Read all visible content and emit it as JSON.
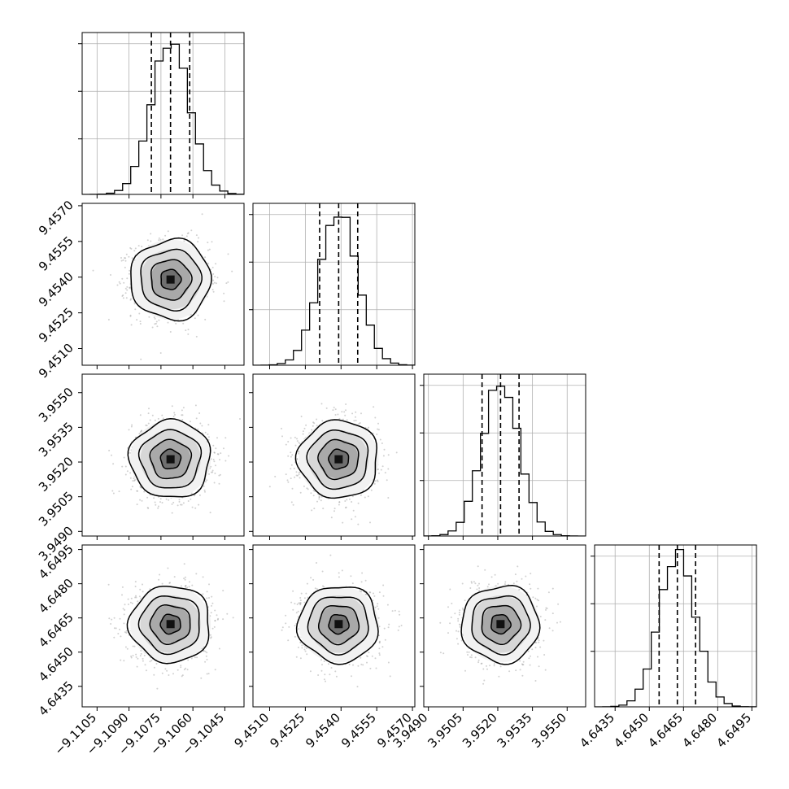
{
  "chart_data": {
    "type": "corner",
    "parameters": [
      {
        "lim": [
          -9.1112,
          -9.1036
        ],
        "median": -9.10705,
        "q16": -9.10795,
        "q84": -9.10615,
        "sigma": 0.0009,
        "hist_peak": 0.95,
        "ticks": [
          -9.1105,
          -9.109,
          -9.1075,
          -9.106,
          -9.1045
        ],
        "tick_labels": [
          "−9.1105",
          "−9.1090",
          "−9.1075",
          "−9.1060",
          "−9.1045"
        ]
      },
      {
        "lim": [
          9.4503,
          9.4571
        ],
        "median": 9.4539,
        "q16": 9.4531,
        "q84": 9.4547,
        "sigma": 0.0008,
        "hist_peak": 0.95,
        "ticks": [
          9.451,
          9.4525,
          9.454,
          9.4555,
          9.457
        ],
        "tick_labels": [
          "9.4510",
          "9.4525",
          "9.4540",
          "9.4555",
          "9.4570"
        ]
      },
      {
        "lim": [
          3.9488,
          3.9558
        ],
        "median": 3.95212,
        "q16": 3.95132,
        "q84": 3.95292,
        "sigma": 0.0008,
        "hist_peak": 0.95,
        "ticks": [
          3.949,
          3.9505,
          3.952,
          3.9535,
          3.955
        ],
        "tick_labels": [
          "3.9490",
          "3.9505",
          "3.9520",
          "3.9535",
          "3.9550"
        ]
      },
      {
        "lim": [
          4.6426,
          4.6497
        ],
        "median": 4.64623,
        "q16": 4.64543,
        "q84": 4.64703,
        "sigma": 0.0008,
        "hist_peak": 0.95,
        "ticks": [
          4.6435,
          4.645,
          4.6465,
          4.648,
          4.6495
        ],
        "tick_labels": [
          "4.6435",
          "4.6450",
          "4.6465",
          "4.6480",
          "4.6495"
        ]
      }
    ],
    "contour_levels_sigma": [
      0.5,
      1.0,
      1.5,
      2.0
    ],
    "grid": true,
    "axis_labels": [],
    "title": ""
  }
}
